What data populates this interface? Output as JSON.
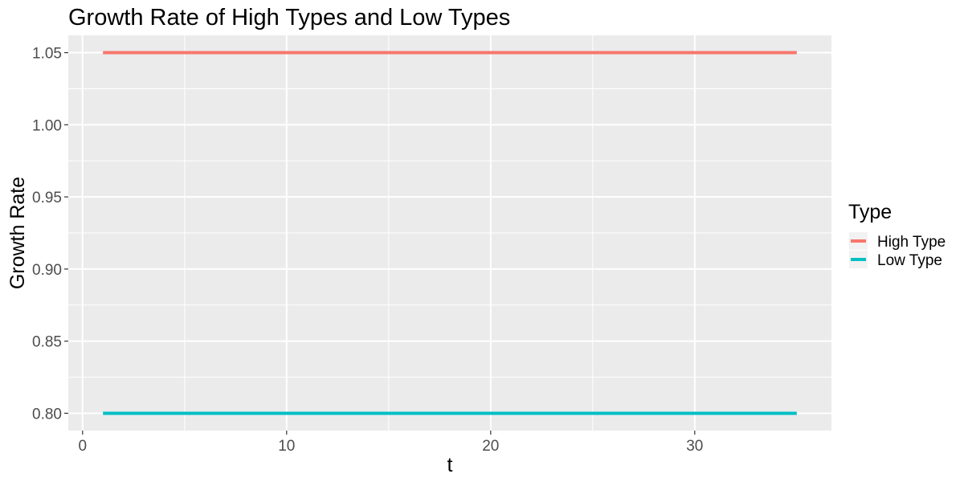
{
  "chart_data": {
    "type": "line",
    "title": "Growth Rate of High Types and Low Types",
    "xlabel": "t",
    "ylabel": "Growth Rate",
    "xlim": [
      -0.7,
      36.7
    ],
    "ylim": [
      0.788,
      1.062
    ],
    "x_ticks": [
      0,
      10,
      20,
      30
    ],
    "x_tick_labels": [
      "0",
      "10",
      "20",
      "30"
    ],
    "y_ticks": [
      0.8,
      0.85,
      0.9,
      0.95,
      1.0,
      1.05
    ],
    "y_tick_labels": [
      "0.80",
      "0.85",
      "0.90",
      "0.95",
      "1.00",
      "1.05"
    ],
    "grid": true,
    "legend": {
      "title": "Type",
      "placement": "right"
    },
    "series": [
      {
        "name": "High Type",
        "color": "#F8766D",
        "x": [
          1,
          35
        ],
        "y": [
          1.05,
          1.05
        ]
      },
      {
        "name": "Low Type",
        "color": "#00BFC4",
        "x": [
          1,
          35
        ],
        "y": [
          0.8,
          0.8
        ]
      }
    ]
  }
}
